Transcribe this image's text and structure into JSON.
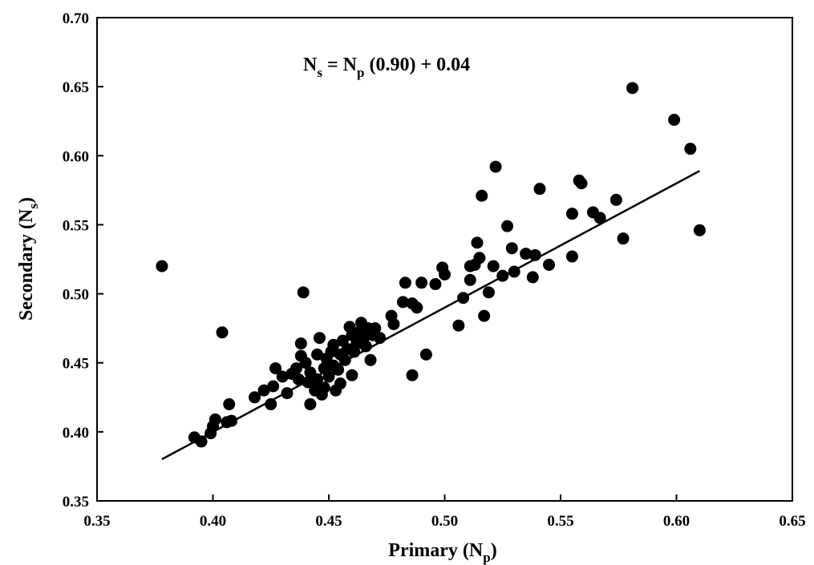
{
  "chart_data": {
    "type": "scatter",
    "annotation": {
      "N1": "N",
      "s1": "s",
      "eq": " = N",
      "p1": "p",
      "rest": " (0.90) + 0.04"
    },
    "xlabel": {
      "main": "Primary (N",
      "sub": "p",
      "close": ")"
    },
    "ylabel": {
      "main": "Secondary (N",
      "sub": "s",
      "close": ")"
    },
    "xlim": [
      0.35,
      0.65
    ],
    "ylim": [
      0.35,
      0.7
    ],
    "xticks": [
      "0.35",
      "0.40",
      "0.45",
      "0.50",
      "0.55",
      "0.60",
      "0.65"
    ],
    "yticks": [
      "0.35",
      "0.40",
      "0.45",
      "0.50",
      "0.55",
      "0.60",
      "0.65",
      "0.70"
    ],
    "grid": false,
    "fit_line": {
      "slope": 0.9,
      "intercept": 0.04,
      "x_range": [
        0.378,
        0.61
      ]
    },
    "points": [
      [
        0.378,
        0.52
      ],
      [
        0.392,
        0.396
      ],
      [
        0.395,
        0.393
      ],
      [
        0.399,
        0.399
      ],
      [
        0.4,
        0.404
      ],
      [
        0.401,
        0.409
      ],
      [
        0.404,
        0.472
      ],
      [
        0.406,
        0.407
      ],
      [
        0.407,
        0.42
      ],
      [
        0.408,
        0.408
      ],
      [
        0.418,
        0.425
      ],
      [
        0.422,
        0.43
      ],
      [
        0.425,
        0.42
      ],
      [
        0.426,
        0.433
      ],
      [
        0.427,
        0.446
      ],
      [
        0.43,
        0.44
      ],
      [
        0.432,
        0.428
      ],
      [
        0.434,
        0.442
      ],
      [
        0.436,
        0.446
      ],
      [
        0.437,
        0.438
      ],
      [
        0.438,
        0.455
      ],
      [
        0.438,
        0.464
      ],
      [
        0.439,
        0.501
      ],
      [
        0.44,
        0.45
      ],
      [
        0.441,
        0.436
      ],
      [
        0.442,
        0.443
      ],
      [
        0.442,
        0.42
      ],
      [
        0.444,
        0.43
      ],
      [
        0.445,
        0.438
      ],
      [
        0.445,
        0.456
      ],
      [
        0.446,
        0.468
      ],
      [
        0.447,
        0.427
      ],
      [
        0.448,
        0.446
      ],
      [
        0.448,
        0.432
      ],
      [
        0.449,
        0.453
      ],
      [
        0.45,
        0.44
      ],
      [
        0.451,
        0.458
      ],
      [
        0.452,
        0.448
      ],
      [
        0.452,
        0.463
      ],
      [
        0.453,
        0.43
      ],
      [
        0.454,
        0.445
      ],
      [
        0.455,
        0.456
      ],
      [
        0.455,
        0.435
      ],
      [
        0.456,
        0.466
      ],
      [
        0.457,
        0.452
      ],
      [
        0.458,
        0.46
      ],
      [
        0.459,
        0.476
      ],
      [
        0.46,
        0.47
      ],
      [
        0.46,
        0.441
      ],
      [
        0.461,
        0.458
      ],
      [
        0.462,
        0.464
      ],
      [
        0.463,
        0.472
      ],
      [
        0.464,
        0.479
      ],
      [
        0.465,
        0.468
      ],
      [
        0.466,
        0.462
      ],
      [
        0.467,
        0.475
      ],
      [
        0.468,
        0.452
      ],
      [
        0.469,
        0.47
      ],
      [
        0.47,
        0.475
      ],
      [
        0.472,
        0.468
      ],
      [
        0.477,
        0.484
      ],
      [
        0.478,
        0.478
      ],
      [
        0.482,
        0.494
      ],
      [
        0.483,
        0.508
      ],
      [
        0.486,
        0.441
      ],
      [
        0.486,
        0.493
      ],
      [
        0.488,
        0.49
      ],
      [
        0.49,
        0.508
      ],
      [
        0.492,
        0.456
      ],
      [
        0.496,
        0.507
      ],
      [
        0.499,
        0.519
      ],
      [
        0.5,
        0.514
      ],
      [
        0.506,
        0.477
      ],
      [
        0.508,
        0.497
      ],
      [
        0.511,
        0.51
      ],
      [
        0.511,
        0.52
      ],
      [
        0.513,
        0.521
      ],
      [
        0.514,
        0.537
      ],
      [
        0.515,
        0.526
      ],
      [
        0.516,
        0.571
      ],
      [
        0.517,
        0.484
      ],
      [
        0.519,
        0.501
      ],
      [
        0.521,
        0.52
      ],
      [
        0.522,
        0.592
      ],
      [
        0.525,
        0.513
      ],
      [
        0.527,
        0.549
      ],
      [
        0.529,
        0.533
      ],
      [
        0.53,
        0.516
      ],
      [
        0.535,
        0.529
      ],
      [
        0.538,
        0.512
      ],
      [
        0.539,
        0.528
      ],
      [
        0.541,
        0.576
      ],
      [
        0.545,
        0.521
      ],
      [
        0.555,
        0.558
      ],
      [
        0.555,
        0.527
      ],
      [
        0.558,
        0.582
      ],
      [
        0.559,
        0.58
      ],
      [
        0.564,
        0.559
      ],
      [
        0.567,
        0.555
      ],
      [
        0.574,
        0.568
      ],
      [
        0.577,
        0.54
      ],
      [
        0.581,
        0.649
      ],
      [
        0.599,
        0.626
      ],
      [
        0.606,
        0.605
      ],
      [
        0.61,
        0.546
      ]
    ]
  }
}
